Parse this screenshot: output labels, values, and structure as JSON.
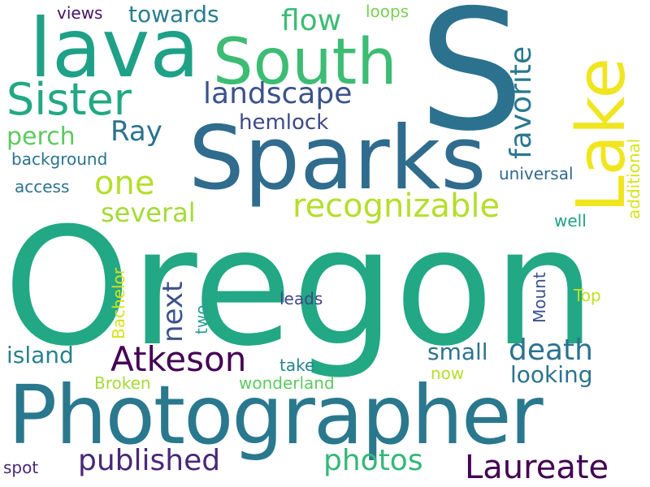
{
  "background": "#ffffff",
  "words": [
    {
      "text": "Oregon",
      "color": "#22a884"
    },
    {
      "text": "Photographer",
      "color": "#2a788e"
    },
    {
      "text": "S",
      "color": "#2c728e"
    },
    {
      "text": "Sparks",
      "color": "#2f6c8e"
    },
    {
      "text": "lava",
      "color": "#1fa187"
    },
    {
      "text": "South",
      "color": "#3dbc74"
    },
    {
      "text": "Lake",
      "color": "#f0e51f"
    },
    {
      "text": "Sister",
      "color": "#22a884"
    },
    {
      "text": "Atkeson",
      "color": "#440154"
    },
    {
      "text": "Laureate",
      "color": "#440154"
    },
    {
      "text": "recognizable",
      "color": "#b5de2b"
    },
    {
      "text": "landscape",
      "color": "#3b528b"
    },
    {
      "text": "Ray",
      "color": "#2c728e"
    },
    {
      "text": "one",
      "color": "#b5de2b"
    },
    {
      "text": "flow",
      "color": "#3dbc74"
    },
    {
      "text": "perch",
      "color": "#5ec962"
    },
    {
      "text": "published",
      "color": "#482878"
    },
    {
      "text": "photos",
      "color": "#35b779"
    },
    {
      "text": "death",
      "color": "#2c728e"
    },
    {
      "text": "favorite",
      "color": "#2a788e"
    },
    {
      "text": "several",
      "color": "#a5db36"
    },
    {
      "text": "next",
      "color": "#3b528b"
    },
    {
      "text": "island",
      "color": "#26828e"
    },
    {
      "text": "looking",
      "color": "#2c728e"
    },
    {
      "text": "small",
      "color": "#2c728e"
    },
    {
      "text": "towards",
      "color": "#287d8e"
    },
    {
      "text": "hemlock",
      "color": "#3e4a89"
    },
    {
      "text": "background",
      "color": "#2c728e"
    },
    {
      "text": "access",
      "color": "#2c728e"
    },
    {
      "text": "universal",
      "color": "#31688e"
    },
    {
      "text": "additional",
      "color": "#d8e219"
    },
    {
      "text": "views",
      "color": "#471365"
    },
    {
      "text": "loops",
      "color": "#7ad151"
    },
    {
      "text": "well",
      "color": "#1fa187"
    },
    {
      "text": "Mount",
      "color": "#3b528b"
    },
    {
      "text": "Top",
      "color": "#c2df23"
    },
    {
      "text": "Bachelor",
      "color": "#d8e219"
    },
    {
      "text": "two",
      "color": "#2a9d8f"
    },
    {
      "text": "leads",
      "color": "#414487"
    },
    {
      "text": "take",
      "color": "#26828e"
    },
    {
      "text": "now",
      "color": "#b5de2b"
    },
    {
      "text": "Broken",
      "color": "#a5db36"
    },
    {
      "text": "wonderland",
      "color": "#5ec962"
    },
    {
      "text": "spot",
      "color": "#482878"
    }
  ]
}
